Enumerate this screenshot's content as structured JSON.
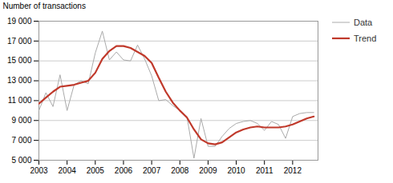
{
  "chart_data": {
    "type": "line",
    "ylabel": "Number of transactions",
    "x": [
      2003.0,
      2003.25,
      2003.5,
      2003.75,
      2004.0,
      2004.25,
      2004.5,
      2004.75,
      2005.0,
      2005.25,
      2005.5,
      2005.75,
      2006.0,
      2006.25,
      2006.5,
      2006.75,
      2007.0,
      2007.25,
      2007.5,
      2007.75,
      2008.0,
      2008.25,
      2008.5,
      2008.75,
      2009.0,
      2009.25,
      2009.5,
      2009.75,
      2010.0,
      2010.25,
      2010.5,
      2010.75,
      2011.0,
      2011.25,
      2011.5,
      2011.75,
      2012.0,
      2012.25,
      2012.5,
      2012.75
    ],
    "series": [
      {
        "name": "Data",
        "color": "#aaaaaa",
        "values": [
          10000,
          11800,
          10400,
          13600,
          10000,
          12600,
          13000,
          12700,
          15800,
          18000,
          15100,
          15900,
          15100,
          15000,
          16600,
          15200,
          13500,
          11000,
          11100,
          10500,
          10000,
          9400,
          5200,
          9200,
          6400,
          6400,
          7400,
          8200,
          8700,
          8900,
          9000,
          8700,
          8000,
          8900,
          8600,
          7200,
          9400,
          9700,
          9800,
          9800
        ]
      },
      {
        "name": "Trend",
        "color": "#c0392b",
        "values": [
          10700,
          11300,
          11900,
          12400,
          12500,
          12600,
          12800,
          13000,
          13800,
          15200,
          16000,
          16500,
          16500,
          16300,
          15900,
          15500,
          14800,
          13300,
          11900,
          10800,
          10000,
          9300,
          8100,
          7100,
          6700,
          6600,
          6800,
          7300,
          7800,
          8100,
          8300,
          8400,
          8300,
          8300,
          8300,
          8400,
          8600,
          8900,
          9200,
          9400
        ]
      }
    ],
    "xlim": [
      2003.0,
      2012.9
    ],
    "xticks": [
      2003,
      2004,
      2005,
      2006,
      2007,
      2008,
      2009,
      2010,
      2011,
      2012
    ],
    "ylim": [
      5000,
      19000
    ],
    "yticks": [
      {
        "value": 5000,
        "label": "5 000"
      },
      {
        "value": 7000,
        "label": "7 000"
      },
      {
        "value": 9000,
        "label": "9 000"
      },
      {
        "value": 11000,
        "label": "11 000"
      },
      {
        "value": 13000,
        "label": "13 000"
      },
      {
        "value": 15000,
        "label": "15 000"
      },
      {
        "value": 17000,
        "label": "17 000"
      },
      {
        "value": 19000,
        "label": "19 000"
      }
    ],
    "grid": true,
    "legend": "upper right"
  }
}
